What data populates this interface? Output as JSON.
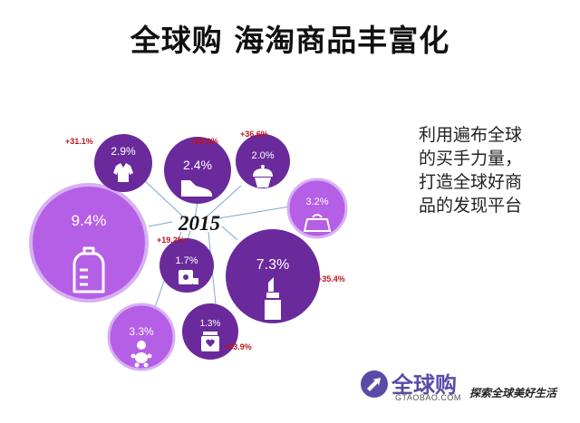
{
  "title": "全球购 海淘商品丰富化",
  "description": {
    "lines": [
      "利用遍布全球",
      "的买手力量，",
      "打造全球好商",
      "品的发现平台"
    ]
  },
  "year": "2015",
  "categories": [
    {
      "id": "clothing",
      "icon": "shirt-icon",
      "value": "2.9%",
      "change": "+31.1%"
    },
    {
      "id": "shoes",
      "icon": "sneaker-icon",
      "value": "2.4%",
      "change": "+68.6%"
    },
    {
      "id": "food",
      "icon": "cupcake-icon",
      "value": "2.0%",
      "change": "+36.6%"
    },
    {
      "id": "bags",
      "icon": "handbag-icon",
      "value": "3.2%",
      "change": ""
    },
    {
      "id": "baby",
      "icon": "baby-bottle-icon",
      "value": "9.4%",
      "change": ""
    },
    {
      "id": "household",
      "icon": "tissue-roll-icon",
      "value": "1.7%",
      "change": "+19.2%"
    },
    {
      "id": "cosmetics",
      "icon": "lipstick-icon",
      "value": "7.3%",
      "change": "+35.4%"
    },
    {
      "id": "toys",
      "icon": "baby-toy-icon",
      "value": "3.3%",
      "change": ""
    },
    {
      "id": "health",
      "icon": "supplement-jar-icon",
      "value": "1.3%",
      "change": "+53.9%"
    }
  ],
  "colors": {
    "deep_purple": "#6a2a9c",
    "light_purple": "#b55fe6",
    "light_purple_border": "#d7b0f2",
    "connector": "#7aa6d6",
    "change_text": "#c0141c",
    "brand": "#5b4ba7"
  },
  "logo": {
    "name": "全球购",
    "domain": "GTAOBAO.COM",
    "slogan": "探索全球美好生活"
  }
}
